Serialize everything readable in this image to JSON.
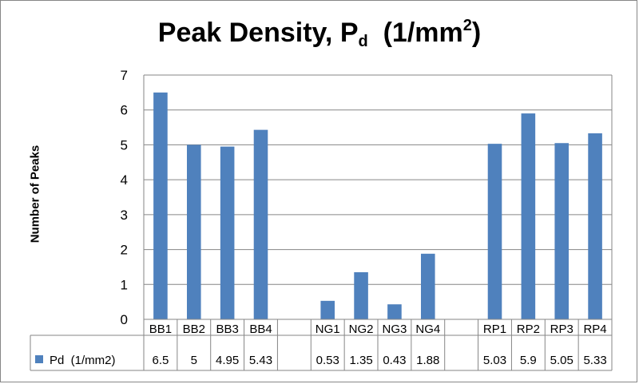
{
  "chart_data": {
    "type": "bar",
    "title_main": "Peak Density, P",
    "title_subscript": "d",
    "title_unit_open": "  (1/mm",
    "title_superscript": "2",
    "title_unit_close": ")",
    "ylabel": "Number of Peaks",
    "xlabel": "",
    "ylim": [
      0,
      7
    ],
    "yticks": [
      "0",
      "1",
      "2",
      "3",
      "4",
      "5",
      "6",
      "7"
    ],
    "grid": true,
    "categories": [
      "BB1",
      "BB2",
      "BB3",
      "BB4",
      "",
      "NG1",
      "NG2",
      "NG3",
      "NG4",
      "",
      "RP1",
      "RP2",
      "RP3",
      "RP4"
    ],
    "series": [
      {
        "name": "Pd  (1/mm2)",
        "color": "#4f81bd",
        "values": [
          6.5,
          5,
          4.95,
          5.43,
          null,
          0.53,
          1.35,
          0.43,
          1.88,
          null,
          5.03,
          5.9,
          5.05,
          5.33
        ],
        "labels": [
          "6.5",
          "5",
          "4.95",
          "5.43",
          "",
          "0.53",
          "1.35",
          "0.43",
          "1.88",
          "",
          "5.03",
          "5.9",
          "5.05",
          "5.33"
        ]
      }
    ],
    "data_table": true
  }
}
